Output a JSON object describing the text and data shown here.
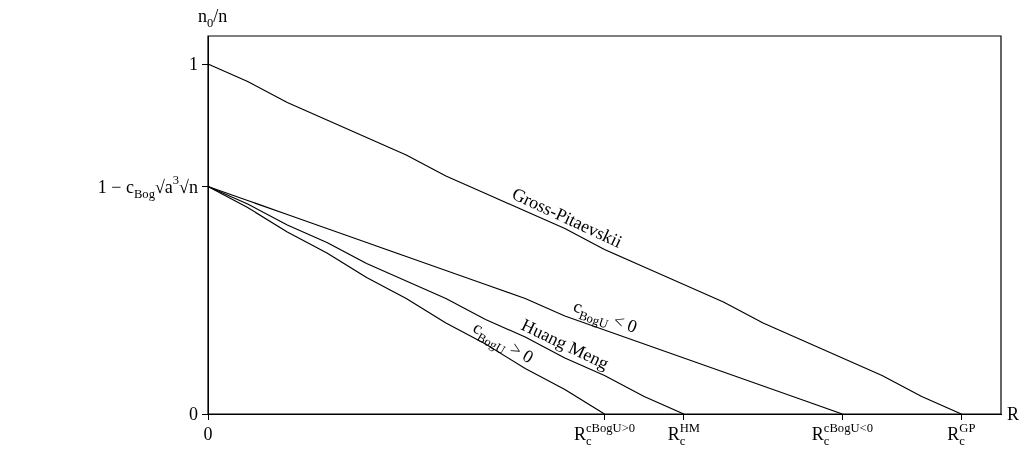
{
  "chart_data": {
    "type": "line",
    "xlabel": "R",
    "ylabel": "n$_{0}$/n",
    "categories": [
      "0",
      null,
      null,
      null,
      null,
      null,
      null,
      null,
      null,
      null,
      "R$_{c}$$^{cBogU>0}$",
      null,
      "R$_{c}$$^{HM}$",
      null,
      null,
      null,
      "R$_{c}$$^{cBogU<0}$",
      null,
      null,
      "R$_{c}$$^{GP}$",
      null
    ],
    "ylim": [
      0,
      1.08
    ],
    "yticks": [
      0,
      {
        "value": 0.65,
        "label": "1 − c$_{Bog}$√a$^{3}$√n"
      },
      1
    ],
    "series": [
      {
        "color": "#000000",
        "values": [
          1,
          0.95,
          0.89,
          0.84,
          0.79,
          0.74,
          0.68,
          0.63,
          0.58,
          0.53,
          0.47,
          0.42,
          0.37,
          0.32,
          0.26,
          0.21,
          0.16,
          0.11,
          0.05,
          0,
          null
        ]
      },
      {
        "color": "#000000",
        "values": [
          0.65,
          0.61,
          0.57,
          0.53,
          0.49,
          0.45,
          0.41,
          0.37,
          0.33,
          0.28,
          0.24,
          0.2,
          0.16,
          0.12,
          0.08,
          0.04,
          0,
          null,
          null,
          null,
          null
        ]
      },
      {
        "color": "#000000",
        "values": [
          0.65,
          0.6,
          0.54,
          0.49,
          0.43,
          0.38,
          0.33,
          0.27,
          0.22,
          0.16,
          0.11,
          0.05,
          0,
          null,
          null,
          null,
          null,
          null,
          null,
          null,
          null
        ]
      },
      {
        "color": "#000000",
        "values": [
          0.65,
          0.59,
          0.52,
          0.46,
          0.39,
          0.33,
          0.26,
          0.2,
          0.13,
          0.07,
          0,
          null,
          null,
          null,
          null,
          null,
          null,
          null,
          null,
          null,
          null
        ]
      }
    ],
    "annotations": [
      "Gross-Pitaevskii",
      "c$_{BogU}$ < 0",
      "Huang Meng",
      "c$_{BogU}$ > 0"
    ],
    "grid": false,
    "marker": "none",
    "line_style": "solid"
  }
}
